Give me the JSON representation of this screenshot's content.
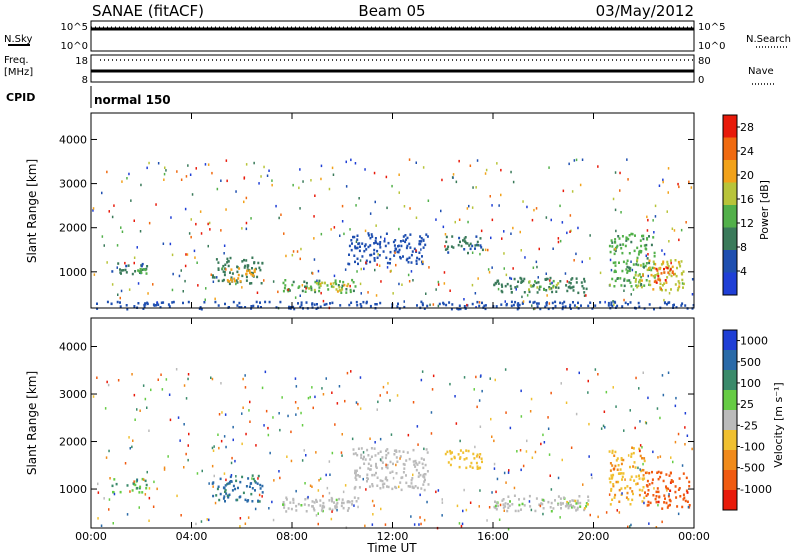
{
  "header": {
    "title_left": "SANAE (fitACF)",
    "title_center": "Beam 05",
    "title_right": "03/May/2012"
  },
  "status_panels": {
    "nsky": {
      "label": "N.Sky",
      "tick_top": "10^5",
      "tick_bottom": "10^0"
    },
    "nsearch": {
      "label": "N.Search",
      "tick_top": "10^5",
      "tick_bottom": "10^0"
    },
    "freq": {
      "label": "Freq.",
      "unit": "[MHz]",
      "tick_top": "18",
      "tick_bottom": "8"
    },
    "nave": {
      "label": "Nave",
      "tick_top": "80",
      "tick_bottom": "0"
    },
    "cpid": {
      "label": "CPID",
      "value": "normal 150"
    }
  },
  "colors": {
    "power_scale": [
      "#1f3fd6",
      "#1f4fb0",
      "#3a7a5a",
      "#52b04a",
      "#b8c43a",
      "#f2a21a",
      "#f06a10",
      "#e81a0a"
    ],
    "velocity_scale": [
      "#1f3fd6",
      "#2a6aa8",
      "#3a8a6a",
      "#66cc44",
      "#bbbbbb",
      "#f0c030",
      "#f08a1a",
      "#f05a10",
      "#e81a0a"
    ]
  },
  "chart_data": [
    {
      "type": "heatmap",
      "panel": "power",
      "xlabel": "Time UT",
      "ylabel": "Slant Range [km]",
      "xlim": [
        0,
        24
      ],
      "ylim": [
        180,
        4600
      ],
      "x_ticks": [
        "00:00",
        "04:00",
        "08:00",
        "12:00",
        "16:00",
        "20:00",
        "00:00"
      ],
      "y_ticks": [
        "1000",
        "2000",
        "3000",
        "4000"
      ],
      "colorbar": {
        "label": "Power [dB]",
        "ticks": [
          "4",
          "8",
          "12",
          "16",
          "20",
          "24",
          "28"
        ],
        "range": [
          0,
          30
        ]
      },
      "regions": [
        {
          "t0": 0.8,
          "t1": 2.2,
          "r0": 950,
          "r1": 1250,
          "value": 8
        },
        {
          "t0": 1.5,
          "t1": 2.2,
          "r0": 950,
          "r1": 1150,
          "value": 14
        },
        {
          "t0": 4.8,
          "t1": 6.8,
          "r0": 750,
          "r1": 1350,
          "value": 10
        },
        {
          "t0": 5.4,
          "t1": 6.5,
          "r0": 800,
          "r1": 1150,
          "value": 20
        },
        {
          "t0": 7.6,
          "t1": 10.6,
          "r0": 550,
          "r1": 850,
          "value": 12
        },
        {
          "t0": 8.6,
          "t1": 10.2,
          "r0": 580,
          "r1": 800,
          "value": 18
        },
        {
          "t0": 10.2,
          "t1": 13.4,
          "r0": 1200,
          "r1": 1900,
          "value": 6
        },
        {
          "t0": 14.0,
          "t1": 15.6,
          "r0": 1450,
          "r1": 1850,
          "value": 8
        },
        {
          "t0": 16.0,
          "t1": 19.8,
          "r0": 550,
          "r1": 900,
          "value": 9
        },
        {
          "t0": 17.2,
          "t1": 18.6,
          "r0": 620,
          "r1": 820,
          "value": 15
        },
        {
          "t0": 20.6,
          "t1": 22.4,
          "r0": 700,
          "r1": 1900,
          "value": 12
        },
        {
          "t0": 21.6,
          "t1": 23.6,
          "r0": 600,
          "r1": 1300,
          "value": 18
        },
        {
          "t0": 22.4,
          "t1": 23.2,
          "r0": 750,
          "r1": 1150,
          "value": 26
        },
        {
          "t0": 0.0,
          "t1": 24.0,
          "r0": 180,
          "r1": 350,
          "value": 6
        }
      ]
    },
    {
      "type": "heatmap",
      "panel": "velocity",
      "xlabel": "Time UT",
      "ylabel": "Slant Range [km]",
      "xlim": [
        0,
        24
      ],
      "ylim": [
        180,
        4600
      ],
      "x_ticks": [
        "00:00",
        "04:00",
        "08:00",
        "12:00",
        "16:00",
        "20:00",
        "00:00"
      ],
      "y_ticks": [
        "1000",
        "2000",
        "3000",
        "4000"
      ],
      "colorbar": {
        "label": "Velocity [m s⁻¹]",
        "ticks": [
          "1000",
          "500",
          "100",
          "25",
          "-25",
          "-100",
          "-500",
          "-1000"
        ],
        "range": [
          -1000,
          1000
        ]
      },
      "regions": [
        {
          "t0": 0.8,
          "t1": 2.2,
          "r0": 950,
          "r1": 1250,
          "value": 300
        },
        {
          "t0": 4.8,
          "t1": 6.8,
          "r0": 750,
          "r1": 1350,
          "value": 600
        },
        {
          "t0": 7.6,
          "t1": 10.6,
          "r0": 550,
          "r1": 850,
          "value": 60
        },
        {
          "t0": 8.8,
          "t1": 10.4,
          "r0": 580,
          "r1": 800,
          "value": 0
        },
        {
          "t0": 10.4,
          "t1": 13.4,
          "r0": 1000,
          "r1": 1900,
          "value": 0
        },
        {
          "t0": 14.0,
          "t1": 15.6,
          "r0": 1450,
          "r1": 1850,
          "value": -200
        },
        {
          "t0": 16.0,
          "t1": 19.8,
          "r0": 550,
          "r1": 900,
          "value": 60
        },
        {
          "t0": 18.6,
          "t1": 19.8,
          "r0": 580,
          "r1": 800,
          "value": -60
        },
        {
          "t0": 20.6,
          "t1": 22.0,
          "r0": 700,
          "r1": 1900,
          "value": -300
        },
        {
          "t0": 22.0,
          "t1": 23.8,
          "r0": 600,
          "r1": 1400,
          "value": -700
        }
      ]
    }
  ]
}
